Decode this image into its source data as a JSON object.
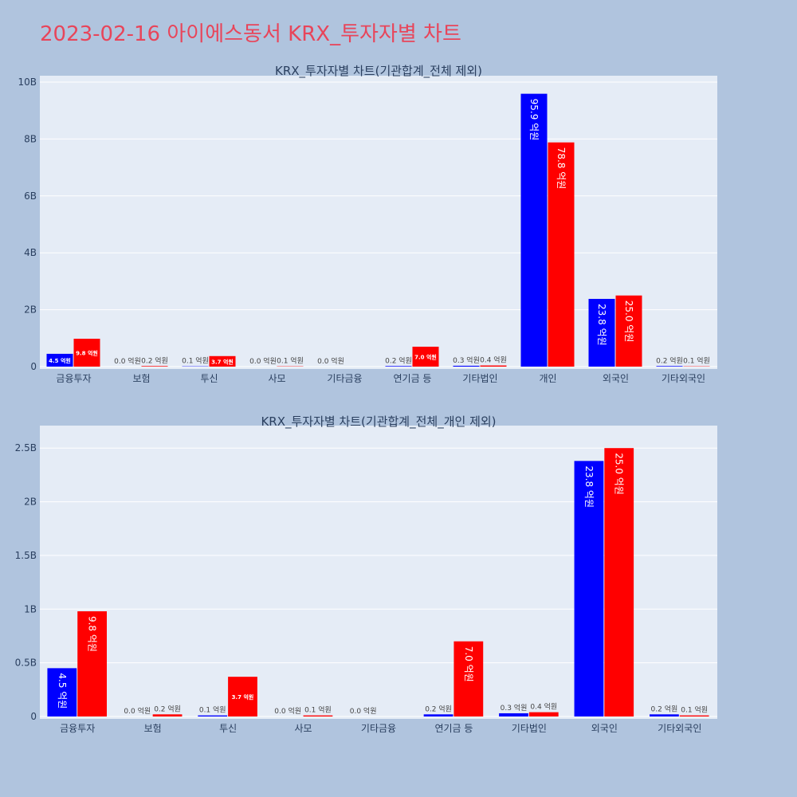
{
  "page": {
    "title": "2023-02-16 아이에스동서 KRX_투자자별 차트"
  },
  "colors": {
    "series_blue": "#0000ff",
    "series_red": "#ff0000",
    "page_bg": "#b0c4de",
    "plot_bg": "#e5ecf6",
    "title": "#e8455a"
  },
  "chart_data": [
    {
      "type": "bar",
      "title": "KRX_투자자별 차트(기관합계_전체 제외)",
      "categories": [
        "금융투자",
        "보험",
        "투신",
        "사모",
        "기타금융",
        "연기금 등",
        "기타법인",
        "개인",
        "외국인",
        "기타외국인"
      ],
      "series": [
        {
          "values": [
            0.45,
            0.0,
            0.01,
            0.0,
            0.0,
            0.02,
            0.03,
            9.59,
            2.38,
            0.02
          ],
          "labels": [
            "4.5 억원",
            "0.0 억원",
            "0.1 억원",
            "0.0 억원",
            "0.0 억원",
            "0.2 억원",
            "0.3 억원",
            "95.9 억원",
            "23.8 억원",
            "0.2 억원"
          ]
        },
        {
          "values": [
            0.98,
            0.02,
            0.37,
            0.01,
            null,
            0.7,
            0.04,
            7.88,
            2.5,
            0.01
          ],
          "labels": [
            "9.8 억원",
            "0.2 억원",
            "3.7 억원",
            "0.1 억원",
            "",
            "7.0 억원",
            "0.4 억원",
            "78.8 억원",
            "25.0 억원",
            "0.1 억원"
          ]
        }
      ],
      "yunit": "B",
      "ylim": [
        0,
        10
      ],
      "yticks": [
        0,
        2,
        4,
        6,
        8,
        10
      ],
      "ytick_labels": [
        "0",
        "2B",
        "4B",
        "6B",
        "8B",
        "10B"
      ],
      "grid": true
    },
    {
      "type": "bar",
      "title": "KRX_투자자별 차트(기관합계_전체_개인 제외)",
      "categories": [
        "금융투자",
        "보험",
        "투신",
        "사모",
        "기타금융",
        "연기금 등",
        "기타법인",
        "외국인",
        "기타외국인"
      ],
      "series": [
        {
          "values": [
            0.45,
            0.0,
            0.01,
            0.0,
            0.0,
            0.02,
            0.03,
            2.38,
            0.02
          ],
          "labels": [
            "4.5 억원",
            "0.0 억원",
            "0.1 억원",
            "0.0 억원",
            "0.0 억원",
            "0.2 억원",
            "0.3 억원",
            "23.8 억원",
            "0.2 억원"
          ]
        },
        {
          "values": [
            0.98,
            0.02,
            0.37,
            0.01,
            null,
            0.7,
            0.04,
            2.5,
            0.01
          ],
          "labels": [
            "9.8 억원",
            "0.2 억원",
            "3.7 억원",
            "0.1 억원",
            "",
            "7.0 억원",
            "0.4 억원",
            "25.0 억원",
            "0.1 억원"
          ]
        }
      ],
      "yunit": "B",
      "ylim": [
        0,
        2.65
      ],
      "yticks": [
        0,
        0.5,
        1,
        1.5,
        2,
        2.5
      ],
      "ytick_labels": [
        "0",
        "0.5B",
        "1B",
        "1.5B",
        "2B",
        "2.5B"
      ],
      "grid": true
    }
  ]
}
